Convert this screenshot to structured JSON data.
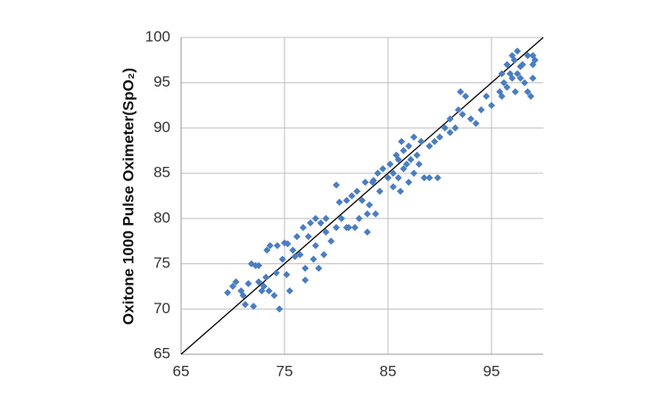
{
  "chart_data": {
    "type": "scatter",
    "y_label": "Oxitone 1000 Pulse Oximeter(SpO₂)",
    "x": [
      69.5,
      70,
      70.3,
      70.8,
      71,
      71.2,
      71.5,
      71.8,
      72,
      72.2,
      72.5,
      72.8,
      73,
      73.2,
      73.5,
      73.3,
      73.6,
      74,
      74.2,
      74.5,
      74.3,
      74.8,
      75,
      75.2,
      75.5,
      75.8,
      76,
      76.2,
      76.5,
      76.8,
      77,
      77,
      77.3,
      77.5,
      77.8,
      78,
      78,
      78.3,
      78.5,
      78.8,
      79,
      79,
      79.5,
      80,
      80,
      80.3,
      80.5,
      81,
      81.2,
      81.5,
      81.8,
      82,
      82.2,
      82.5,
      82.8,
      83,
      83,
      83.2,
      83.5,
      83.8,
      84,
      84.2,
      84.5,
      85,
      85.2,
      85.5,
      85.5,
      85.8,
      86,
      86,
      86.2,
      86.5,
      86.5,
      86.8,
      87,
      87,
      87.2,
      87.5,
      87.5,
      87.8,
      88,
      88.5,
      89,
      89,
      89.5,
      89.8,
      90,
      90.5,
      91,
      91,
      91.5,
      91.8,
      92,
      92.2,
      92.5,
      93,
      93.5,
      94,
      94.5,
      95,
      95.8,
      96,
      96,
      96.2,
      96.5,
      96.5,
      96.8,
      97,
      97,
      97.2,
      97.3,
      97.5,
      97.5,
      97.8,
      98,
      98.2,
      98.5,
      98.5,
      98.8,
      99,
      99,
      99.2,
      99,
      97.8,
      75.3,
      72.5,
      83.6,
      81,
      86.3,
      88.2
    ],
    "values": [
      71.8,
      72.5,
      73,
      72,
      71.5,
      70.5,
      72.8,
      75,
      70.3,
      74.8,
      73,
      72,
      72.5,
      73.5,
      72,
      76.5,
      77,
      71.5,
      74,
      70,
      77,
      75.5,
      77.3,
      73.8,
      72,
      76.5,
      75.8,
      78,
      76,
      79,
      74.5,
      73.2,
      78,
      79.5,
      75.5,
      77,
      80,
      74.5,
      79.5,
      76,
      80,
      78.5,
      77.5,
      83.7,
      79,
      81.8,
      80,
      82,
      79,
      82.5,
      79,
      83,
      80,
      82,
      84,
      80.5,
      78.5,
      81.5,
      84,
      80.5,
      85,
      83,
      85.5,
      84.5,
      86,
      85,
      83.5,
      87,
      84.5,
      86.5,
      83,
      85.5,
      87.5,
      86,
      84,
      88,
      86.5,
      85,
      89,
      87,
      86,
      84.5,
      88,
      84.5,
      88.5,
      84.5,
      89,
      90,
      89.5,
      91,
      90,
      92,
      94,
      91.5,
      93.5,
      91,
      90.5,
      92,
      93.5,
      92.5,
      94,
      96,
      93.5,
      95,
      97,
      94.5,
      96,
      98,
      95.5,
      97.5,
      94,
      98.5,
      96,
      95.5,
      97,
      95,
      94,
      98,
      93.5,
      97,
      98,
      97.5,
      95.5,
      96.8,
      77.2,
      74.8,
      84.2,
      79,
      88.5,
      88.5
    ],
    "color": "#4a7dc1",
    "marker": "diamond",
    "xlim": [
      65,
      100
    ],
    "ylim": [
      65,
      100
    ],
    "xticks": [
      65,
      75,
      85,
      95
    ],
    "yticks": [
      65,
      70,
      75,
      80,
      85,
      90,
      95,
      100
    ],
    "grid": true,
    "diagonal": true
  }
}
